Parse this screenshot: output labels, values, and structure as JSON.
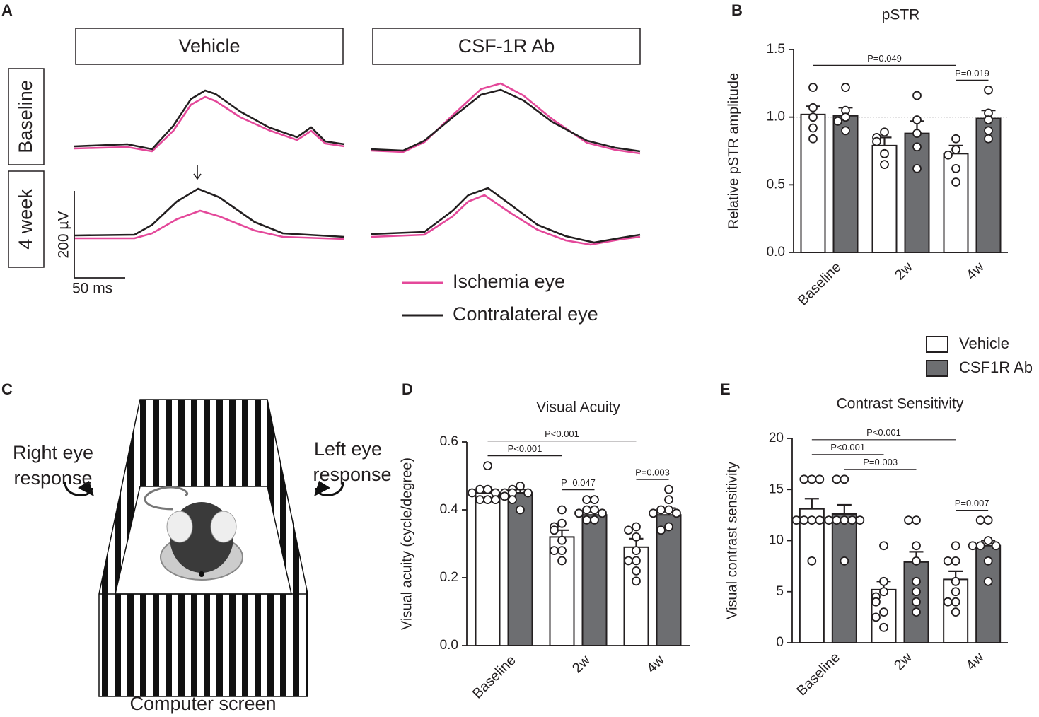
{
  "panel_labels": [
    "A",
    "B",
    "C",
    "D",
    "E"
  ],
  "erg": {
    "columns": [
      "Vehicle",
      "CSF-1R Ab"
    ],
    "rows": [
      "Baseline",
      "4 week"
    ],
    "scale_y": "200 µV",
    "scale_x": "50 ms",
    "legend": [
      {
        "name": "Ischemia eye",
        "color": "#e4489a"
      },
      {
        "name": "Contralateral eye",
        "color": "#231f20"
      }
    ]
  },
  "diagram": {
    "left_label": [
      "Right eye",
      "response"
    ],
    "right_label": [
      "Left eye",
      "response"
    ],
    "caption": "Computer screen"
  },
  "chart_data": [
    {
      "type": "bar",
      "title": "pSTR",
      "y_label": "Relative pSTR amplitude",
      "categories": [
        "Baseline",
        "2w",
        "4w"
      ],
      "ylim": [
        0,
        1.5
      ],
      "yticks": [
        {
          "value": 0,
          "label": "0.0"
        },
        0.5,
        {
          "value": 1,
          "label": "1.0"
        },
        1.5
      ],
      "ref_line": 1,
      "series": [
        {
          "name": "Vehicle",
          "color": "#ffffff",
          "values": [
            1.02,
            0.79,
            0.73
          ],
          "errors": [
            0.06,
            0.06,
            0.06
          ],
          "points": [
            [
              1.22,
              1.07,
              1.0,
              0.92,
              0.84
            ],
            [
              0.89,
              0.85,
              0.82,
              0.73,
              0.65
            ],
            [
              0.84,
              0.76,
              0.72,
              0.62,
              0.52
            ]
          ]
        },
        {
          "name": "CSF1R Ab",
          "color": "#6d6e71",
          "values": [
            1.01,
            0.88,
            0.99
          ],
          "errors": [
            0.06,
            0.09,
            0.06
          ],
          "points": [
            [
              1.22,
              1.05,
              1.0,
              0.97,
              0.9
            ],
            [
              1.16,
              0.98,
              0.88,
              0.78,
              0.62
            ],
            [
              1.2,
              1.03,
              0.98,
              0.9,
              0.84
            ]
          ]
        }
      ],
      "brackets": [
        {
          "label": "P=0.019",
          "from": [
            2,
            0
          ],
          "to": [
            2,
            1
          ]
        },
        {
          "label": "P=0.049",
          "from": [
            0,
            0
          ],
          "to": [
            2,
            0
          ]
        }
      ]
    },
    {
      "type": "bar",
      "title": "Visual Acuity",
      "y_label": "Visual acuity (cycle/degree)",
      "categories": [
        "Baseline",
        "2w",
        "4w"
      ],
      "ylim": [
        0,
        0.6
      ],
      "yticks": [
        {
          "value": 0,
          "label": "0.0"
        },
        0.2,
        0.4,
        0.6
      ],
      "series": [
        {
          "name": "Vehicle",
          "color": "#ffffff",
          "values": [
            0.45,
            0.32,
            0.29
          ],
          "errors": [
            0.01,
            0.02,
            0.025
          ],
          "points": [
            [
              0.53,
              0.46,
              0.46,
              0.45,
              0.45,
              0.43,
              0.43,
              0.43
            ],
            [
              0.4,
              0.36,
              0.35,
              0.34,
              0.31,
              0.28,
              0.28,
              0.25
            ],
            [
              0.35,
              0.34,
              0.32,
              0.28,
              0.25,
              0.25,
              0.22,
              0.19
            ]
          ]
        },
        {
          "name": "CSF1R Ab",
          "color": "#6d6e71",
          "values": [
            0.45,
            0.385,
            0.385
          ],
          "errors": [
            0.01,
            0.013,
            0.02
          ],
          "points": [
            [
              0.47,
              0.46,
              0.45,
              0.45,
              0.45,
              0.44,
              0.43,
              0.4
            ],
            [
              0.43,
              0.43,
              0.4,
              0.4,
              0.39,
              0.39,
              0.37,
              0.37
            ],
            [
              0.46,
              0.43,
              0.4,
              0.4,
              0.39,
              0.39,
              0.35,
              0.34
            ]
          ]
        }
      ],
      "brackets": [
        {
          "label": "P=0.047",
          "from": [
            1,
            0
          ],
          "to": [
            1,
            1
          ]
        },
        {
          "label": "P=0.003",
          "from": [
            2,
            0
          ],
          "to": [
            2,
            1
          ]
        },
        {
          "label": "P<0.001",
          "from": [
            0,
            0
          ],
          "to": [
            1,
            0
          ]
        },
        {
          "label": "P<0.001",
          "from": [
            0,
            0
          ],
          "to": [
            2,
            0
          ]
        }
      ]
    },
    {
      "type": "bar",
      "title": "Contrast Sensitivity",
      "y_label": "Visual contrast sensitivity",
      "categories": [
        "Baseline",
        "2w",
        "4w"
      ],
      "ylim": [
        0,
        20
      ],
      "yticks": [
        0,
        5,
        10,
        15,
        20
      ],
      "series": [
        {
          "name": "Vehicle",
          "color": "#ffffff",
          "values": [
            13.1,
            5.2,
            6.2
          ],
          "errors": [
            1.0,
            0.8,
            0.8
          ],
          "points": [
            [
              16,
              16,
              16,
              12,
              12,
              12,
              12,
              8
            ],
            [
              9.5,
              6,
              5,
              4.5,
              4,
              3,
              2.5,
              1.5
            ],
            [
              9.5,
              8,
              8,
              6,
              5,
              4,
              4,
              3
            ]
          ]
        },
        {
          "name": "CSF1R Ab",
          "color": "#6d6e71",
          "values": [
            12.6,
            7.9,
            9.5
          ],
          "errors": [
            0.9,
            1.0,
            0.5
          ],
          "points": [
            [
              16,
              16,
              12,
              12,
              12,
              12,
              12,
              8
            ],
            [
              12,
              12,
              9.5,
              8,
              6,
              5,
              4,
              3
            ],
            [
              12,
              12,
              10,
              9.5,
              9.5,
              9.5,
              8,
              6
            ]
          ]
        }
      ],
      "brackets": [
        {
          "label": "P=0.007",
          "from": [
            2,
            0
          ],
          "to": [
            2,
            1
          ]
        },
        {
          "label": "P=0.003",
          "from": [
            0,
            1
          ],
          "to": [
            1,
            1
          ]
        },
        {
          "label": "P<0.001",
          "from": [
            0,
            0
          ],
          "to": [
            1,
            0
          ]
        },
        {
          "label": "P<0.001",
          "from": [
            0,
            0
          ],
          "to": [
            2,
            0
          ]
        }
      ]
    }
  ]
}
